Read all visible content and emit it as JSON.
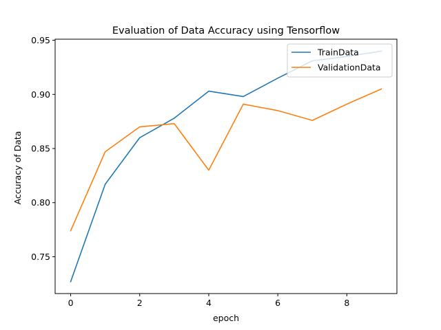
{
  "chart_data": {
    "type": "line",
    "title": "Evaluation of Data Accuracy using Tensorflow",
    "xlabel": "epoch",
    "ylabel": "Accuracy of Data",
    "x": [
      0,
      1,
      2,
      3,
      4,
      5,
      6,
      7,
      8,
      9
    ],
    "xlim": [
      -0.45,
      9.45
    ],
    "ylim": [
      0.716,
      0.951
    ],
    "xticks": [
      0,
      2,
      4,
      6,
      8
    ],
    "xtick_labels": [
      "0",
      "2",
      "4",
      "6",
      "8"
    ],
    "yticks": [
      0.75,
      0.8,
      0.85,
      0.9,
      0.95
    ],
    "ytick_labels": [
      "0.75",
      "0.80",
      "0.85",
      "0.90",
      "0.95"
    ],
    "grid": false,
    "legend_position": "top-right",
    "series": [
      {
        "name": "TrainData",
        "color": "#1f77b4",
        "values": [
          0.727,
          0.817,
          0.86,
          0.878,
          0.903,
          0.898,
          0.915,
          0.931,
          0.935,
          0.94
        ]
      },
      {
        "name": "ValidationData",
        "color": "#ff7f0e",
        "values": [
          0.774,
          0.847,
          0.87,
          0.873,
          0.83,
          0.891,
          0.885,
          0.876,
          0.891,
          0.905
        ]
      }
    ]
  }
}
